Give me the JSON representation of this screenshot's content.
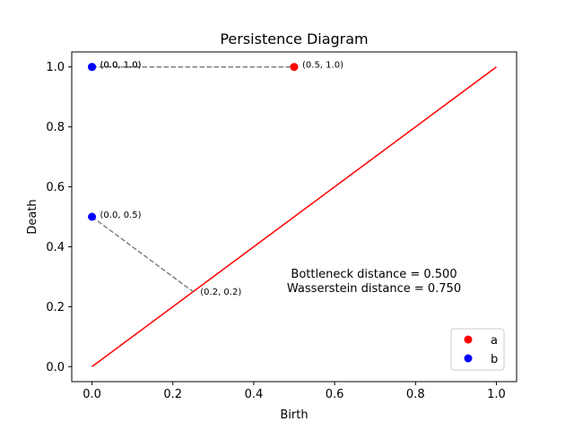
{
  "chart_data": {
    "type": "scatter",
    "title": "Persistence Diagram",
    "xlabel": "Birth",
    "ylabel": "Death",
    "xlim": [
      -0.05,
      1.05
    ],
    "ylim": [
      -0.05,
      1.05
    ],
    "xticks": [
      "0.0",
      "0.2",
      "0.4",
      "0.6",
      "0.8",
      "1.0"
    ],
    "yticks": [
      "0.0",
      "0.2",
      "0.4",
      "0.6",
      "0.8",
      "1.0"
    ],
    "grid": false,
    "legend_position": "lower right",
    "diagonal": {
      "from": [
        0.0,
        0.0
      ],
      "to": [
        1.0,
        1.0
      ],
      "color": "#ff0000"
    },
    "series": [
      {
        "name": "a",
        "color": "#ff0000",
        "points": [
          {
            "x": 0.5,
            "y": 1.0,
            "label": "(0.5, 1.0)"
          }
        ]
      },
      {
        "name": "b",
        "color": "#0000ff",
        "points": [
          {
            "x": 0.0,
            "y": 1.0,
            "label": "(0.0, 1.0)"
          },
          {
            "x": 0.0,
            "y": 1.0,
            "label": "(0.0, 1.0)"
          },
          {
            "x": 0.0,
            "y": 0.5,
            "label": "(0.0, 0.5)"
          }
        ]
      }
    ],
    "matchings": [
      {
        "from": [
          0.0,
          1.0
        ],
        "to": [
          0.5,
          1.0
        ],
        "color": "#808080",
        "style": "dashed"
      },
      {
        "from": [
          0.0,
          0.5
        ],
        "to": [
          0.25,
          0.25
        ],
        "color": "#808080",
        "style": "dashed",
        "end_label": "(0.2, 0.2)"
      }
    ],
    "annotations": [
      "Bottleneck distance = 0.500",
      "Wasserstein distance = 0.750"
    ]
  }
}
